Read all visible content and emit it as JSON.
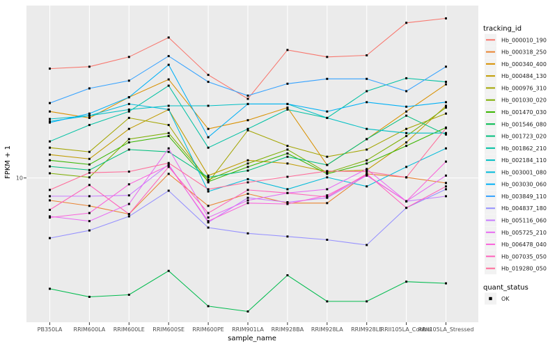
{
  "figure": {
    "y_axis": {
      "title": "FPKM + 1",
      "tick_label": "10"
    },
    "x_axis": {
      "title": "sample_name"
    },
    "legend": {
      "tracking_title": "tracking_id",
      "quant_title": "quant_status",
      "quant_ok_label": "OK",
      "quant_marker": "black-square-point",
      "key_background": "#F2F2F2"
    },
    "panel_background": "#EBEBEB",
    "gridline_color": "#FFFFFF",
    "axis_text_color": "#4D4D4D",
    "point_color": "#000000"
  },
  "chart_data": {
    "type": "line",
    "title": "",
    "xlabel": "sample_name",
    "ylabel": "FPKM + 1",
    "y_scale": "log10",
    "ylim": [
      0.92,
      173
    ],
    "y_ticks": [
      10
    ],
    "grid": {
      "vertical": "per-category",
      "horizontal_at": [
        10
      ]
    },
    "legend_position": "right",
    "point_marker": "filled-square",
    "categories": [
      "PB350LA",
      "RRIM600LA",
      "RRIM600LE",
      "RRIM600SE",
      "RRIM600PE",
      "RRIM901LA",
      "RRIM928BA",
      "RRIM928LA",
      "RRIM928LE",
      "RRII105LA_Control",
      "RRII105LA_Stressed"
    ],
    "series": [
      {
        "name": "Hb_000010_190",
        "color": "#F8766D",
        "values": [
          61,
          63,
          74,
          102,
          55,
          37,
          83,
          74,
          76,
          130,
          140
        ]
      },
      {
        "name": "Hb_000318_250",
        "color": "#EA8331",
        "values": [
          6.9,
          6.3,
          5.5,
          10.7,
          6.3,
          7.7,
          6.6,
          6.6,
          10.7,
          10.1,
          9.2
        ]
      },
      {
        "name": "Hb_000340_400",
        "color": "#D89000",
        "values": [
          30,
          27,
          38,
          51,
          22.5,
          26,
          32,
          12.4,
          19,
          30,
          47
        ]
      },
      {
        "name": "Hb_000484_130",
        "color": "#C09B00",
        "values": [
          14.7,
          13.7,
          22.5,
          31,
          10.4,
          13.4,
          12.7,
          11.1,
          11.4,
          18,
          33
        ]
      },
      {
        "name": "Hb_000976_310",
        "color": "#A3A500",
        "values": [
          16.5,
          15.4,
          27,
          24,
          9.3,
          22,
          17,
          14.2,
          16,
          22.5,
          29
        ]
      },
      {
        "name": "Hb_001030_020",
        "color": "#7CAE00",
        "values": [
          10.8,
          10.1,
          19,
          21,
          9.7,
          12.7,
          16,
          10.9,
          13.4,
          20,
          32
        ]
      },
      {
        "name": "Hb_001470_030",
        "color": "#39B600",
        "values": [
          13.4,
          12.5,
          18,
          20,
          9.4,
          12,
          15,
          10.7,
          12.7,
          17,
          23
        ]
      },
      {
        "name": "Hb_001546_080",
        "color": "#00BB4E",
        "values": [
          1.6,
          1.4,
          1.45,
          2.15,
          1.2,
          1.1,
          2.0,
          1.3,
          1.3,
          1.8,
          1.75
        ]
      },
      {
        "name": "Hb_001723_020",
        "color": "#00BF7D",
        "values": [
          12.1,
          11.4,
          16,
          15.4,
          10.1,
          11.3,
          14.2,
          12.4,
          19,
          28,
          20.5
        ]
      },
      {
        "name": "Hb_001862_210",
        "color": "#00C1A3",
        "values": [
          18.3,
          24,
          30,
          46,
          16.5,
          22.5,
          31,
          27,
          42,
          52,
          49
        ]
      },
      {
        "name": "Hb_002184_110",
        "color": "#00BFC4",
        "values": [
          26.5,
          28,
          31,
          33,
          33,
          34,
          34,
          27,
          22.5,
          21,
          21
        ]
      },
      {
        "name": "Hb_003001_080",
        "color": "#00BBDA",
        "values": [
          25.5,
          28,
          34,
          31,
          8.0,
          9.8,
          8.3,
          10.1,
          8.7,
          12,
          16.3
        ]
      },
      {
        "name": "Hb_003030_060",
        "color": "#00B0F6",
        "values": [
          25,
          29,
          38,
          65,
          19.6,
          34,
          34,
          30,
          35,
          32.5,
          35
        ]
      },
      {
        "name": "Hb_003849_110",
        "color": "#35A2FF",
        "values": [
          34.5,
          44,
          50,
          75,
          49,
          39,
          47.5,
          51.5,
          51.5,
          42,
          63
        ]
      },
      {
        "name": "Hb_004837_180",
        "color": "#9590FF",
        "values": [
          3.7,
          4.2,
          5.3,
          8.1,
          4.4,
          4.0,
          3.8,
          3.6,
          3.3,
          6.1,
          8.3
        ]
      },
      {
        "name": "Hb_005116_060",
        "color": "#C77CFF",
        "values": [
          7.4,
          7.4,
          7.5,
          12.5,
          4.8,
          7.2,
          6.7,
          7.2,
          10.4,
          6.8,
          7.4
        ]
      },
      {
        "name": "Hb_005725_210",
        "color": "#E76BF3",
        "values": [
          5.3,
          4.9,
          6.5,
          16.3,
          5.2,
          6.9,
          7.8,
          8.3,
          11.6,
          6.8,
          10.4
        ]
      },
      {
        "name": "Hb_006478_040",
        "color": "#FA62DB",
        "values": [
          5.2,
          5.6,
          9.0,
          12.3,
          4.9,
          6.6,
          6.5,
          7.5,
          10.5,
          6.8,
          13.1
        ]
      },
      {
        "name": "Hb_007035_050",
        "color": "#FF62BC",
        "values": [
          5.9,
          8.9,
          5.5,
          12,
          5.6,
          8.2,
          7.8,
          7.3,
          10.7,
          6.1,
          8.7
        ]
      },
      {
        "name": "Hb_019280_050",
        "color": "#FF6A98",
        "values": [
          8.2,
          10.9,
          11.1,
          12.8,
          8.3,
          9.3,
          10.2,
          11.2,
          11.1,
          10.1,
          22.8
        ]
      }
    ],
    "quant_status": {
      "label": "OK"
    }
  }
}
